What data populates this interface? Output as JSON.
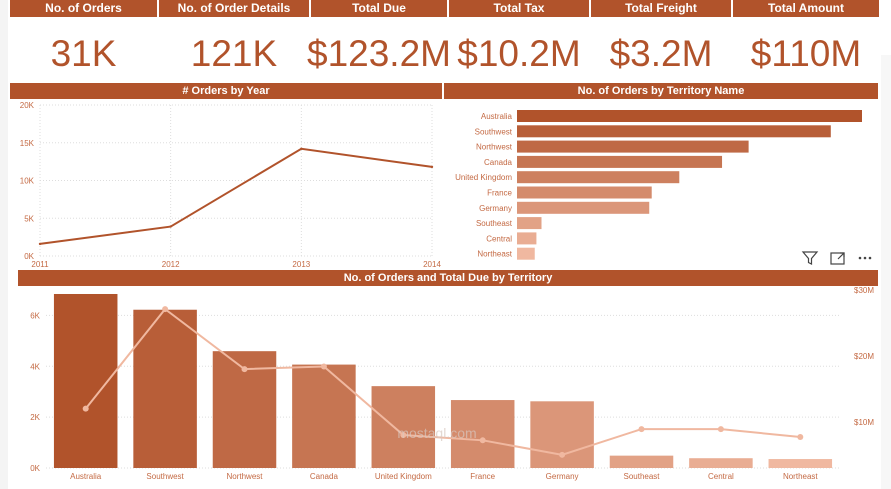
{
  "kpis": [
    {
      "label": "No. of Orders",
      "value": "31K"
    },
    {
      "label": "No. of Order Details",
      "value": "121K"
    },
    {
      "label": "Total Due",
      "value": "$123.2M"
    },
    {
      "label": "Total Tax",
      "value": "$10.2M"
    },
    {
      "label": "Total Freight",
      "value": "$3.2M"
    },
    {
      "label": "Total Amount",
      "value": "$110M"
    }
  ],
  "colors": {
    "primary": "#b1532b",
    "light": "#f0b8a0",
    "grid": "#dddddd",
    "axis_text": "#c46a44"
  },
  "watermark": "mostaql.com",
  "chart_data": [
    {
      "type": "line",
      "title": "# Orders by Year",
      "x": [
        "2011",
        "2012",
        "2013",
        "2014"
      ],
      "values": [
        1600,
        3900,
        14200,
        11800
      ],
      "yticks": [
        "0K",
        "5K",
        "10K",
        "15K",
        "20K"
      ],
      "ylim": [
        0,
        20000
      ],
      "grid": true
    },
    {
      "type": "bar",
      "orientation": "horizontal",
      "title": "No. of Orders by Territory Name",
      "categories": [
        "Australia",
        "Southwest",
        "Northwest",
        "Canada",
        "United Kingdom",
        "France",
        "Germany",
        "Southeast",
        "Central",
        "Northeast"
      ],
      "values": [
        6843,
        6224,
        4594,
        4067,
        3219,
        2672,
        2623,
        486,
        385,
        352
      ]
    },
    {
      "type": "bar",
      "title": "No. of Orders and Total Due by Territory",
      "categories": [
        "Australia",
        "Southwest",
        "Northwest",
        "Canada",
        "United Kingdom",
        "France",
        "Germany",
        "Southeast",
        "Central",
        "Northeast"
      ],
      "series": [
        {
          "values": [
            6843,
            6224,
            4594,
            4067,
            3219,
            2672,
            2623,
            486,
            385,
            352
          ]
        },
        {
          "type": "line",
          "axis": "right",
          "values": [
            12000000,
            27100000,
            18000000,
            18400000,
            8000000,
            7200000,
            5000000,
            8900000,
            8900000,
            7700000
          ]
        }
      ],
      "yticks": [
        "0K",
        "2K",
        "4K",
        "6K"
      ],
      "ylim": [
        0,
        7000
      ],
      "y2ticks": [
        "$10M",
        "$20M",
        "$30M"
      ],
      "y2lim": [
        3000000,
        30000000
      ],
      "grid": true
    }
  ]
}
